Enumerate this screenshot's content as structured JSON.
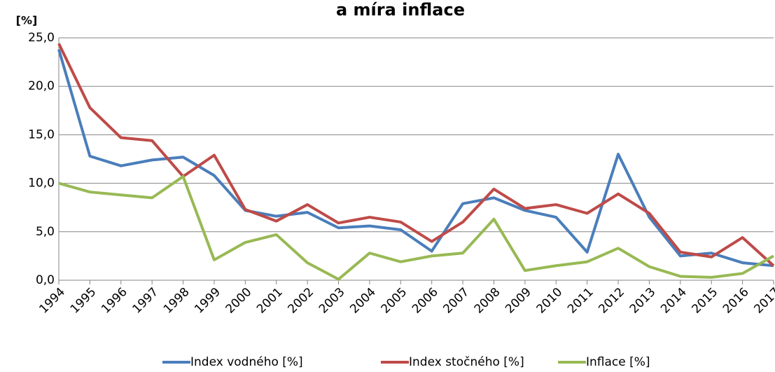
{
  "chart_data": {
    "type": "line",
    "title": "a míra inflace",
    "ylabel": "[%]",
    "categories": [
      "1994",
      "1995",
      "1996",
      "1997",
      "1998",
      "1999",
      "2000",
      "2001",
      "2002",
      "2003",
      "2004",
      "2005",
      "2006",
      "2007",
      "2008",
      "2009",
      "2010",
      "2011",
      "2012",
      "2013",
      "2014",
      "2015",
      "2016",
      "2017"
    ],
    "series": [
      {
        "name": "Index vodného [%]",
        "color": "#4a7ebb",
        "values": [
          23.8,
          12.8,
          11.8,
          12.4,
          12.7,
          10.8,
          7.2,
          6.6,
          7.0,
          5.4,
          5.6,
          5.2,
          3.0,
          7.9,
          8.5,
          7.2,
          6.5,
          2.9,
          13.0,
          6.5,
          2.5,
          2.8,
          1.8,
          1.5
        ]
      },
      {
        "name": "Index stočného [%]",
        "color": "#be4b48",
        "values": [
          24.4,
          17.8,
          14.7,
          14.4,
          10.7,
          12.9,
          7.3,
          6.1,
          7.8,
          5.9,
          6.5,
          6.0,
          4.0,
          6.0,
          9.4,
          7.4,
          7.8,
          6.9,
          8.9,
          6.9,
          2.9,
          2.4,
          4.4,
          1.5
        ]
      },
      {
        "name": "Inflace [%]",
        "color": "#98b954",
        "values": [
          10.0,
          9.1,
          8.8,
          8.5,
          10.7,
          2.1,
          3.9,
          4.7,
          1.8,
          0.1,
          2.8,
          1.9,
          2.5,
          2.8,
          6.3,
          1.0,
          1.5,
          1.9,
          3.3,
          1.4,
          0.4,
          0.3,
          0.7,
          2.5
        ]
      }
    ],
    "ylim": [
      0,
      25
    ],
    "yticks": [
      {
        "value": 0,
        "label": "0,0"
      },
      {
        "value": 5,
        "label": "5,0"
      },
      {
        "value": 10,
        "label": "10,0"
      },
      {
        "value": 15,
        "label": "15,0"
      },
      {
        "value": 20,
        "label": "20,0"
      },
      {
        "value": 25,
        "label": "25,0"
      }
    ],
    "grid": true,
    "legend": "bottom"
  }
}
